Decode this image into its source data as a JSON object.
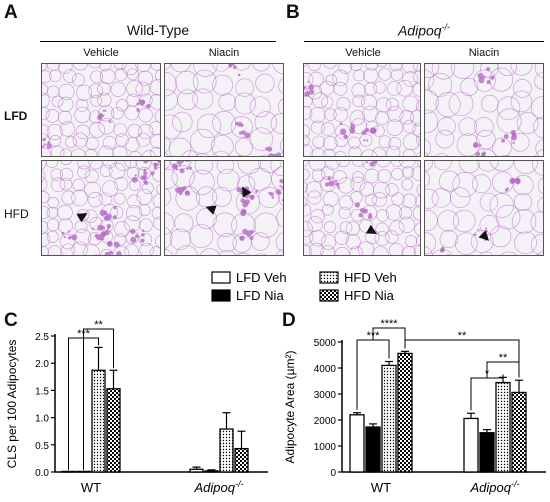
{
  "panels": {
    "A": {
      "letter": "A",
      "title": "Wild-Type"
    },
    "B": {
      "letter": "B",
      "title": "Adipoq",
      "title_sup": "-/-"
    },
    "C": {
      "letter": "C"
    },
    "D": {
      "letter": "D"
    }
  },
  "micrograph_columns": [
    "Vehicle",
    "Niacin",
    "Vehicle",
    "Niacin"
  ],
  "micrograph_rows": [
    "LFD",
    "HFD"
  ],
  "legend": [
    {
      "label": "LFD Veh",
      "pattern": "open"
    },
    {
      "label": "HFD Veh",
      "pattern": "dotted"
    },
    {
      "label": "LFD Nia",
      "pattern": "solid"
    },
    {
      "label": "HFD Nia",
      "pattern": "checkered"
    }
  ],
  "colors": {
    "black": "#000000",
    "tissue": "#b46ac4",
    "micro_bg": "#f4f2f6"
  },
  "chart_data": [
    {
      "type": "bar",
      "panel": "C",
      "groups": [
        "WT",
        "Adipoq-/-"
      ],
      "group_labels": {
        "WT": "WT",
        "Adipoq-/-": {
          "base": "Adipoq",
          "sup": "-/-"
        }
      },
      "series": [
        {
          "name": "LFD Veh",
          "values": [
            0.0,
            0.05
          ],
          "errors": [
            0.0,
            0.04
          ]
        },
        {
          "name": "LFD Nia",
          "values": [
            0.0,
            0.02
          ],
          "errors": [
            0.0,
            0.02
          ]
        },
        {
          "name": "HFD Veh",
          "values": [
            1.87,
            0.79
          ],
          "errors": [
            0.42,
            0.3
          ]
        },
        {
          "name": "HFD Nia",
          "values": [
            1.53,
            0.43
          ],
          "errors": [
            0.34,
            0.32
          ]
        }
      ],
      "ylabel": "CLS per 100 Adipocytes",
      "ylim": [
        0,
        2.5
      ],
      "yticks": [
        "0.0",
        "0.5",
        "1.0",
        "1.5",
        "2.0",
        "2.5"
      ],
      "annotations": [
        "***",
        "**"
      ]
    },
    {
      "type": "bar",
      "panel": "D",
      "groups": [
        "WT",
        "Adipoq-/-"
      ],
      "group_labels": {
        "WT": "WT",
        "Adipoq-/-": {
          "base": "Adipoq",
          "sup": "-/-"
        }
      },
      "series": [
        {
          "name": "LFD Veh",
          "values": [
            2200,
            2060
          ],
          "errors": [
            80,
            200
          ]
        },
        {
          "name": "LFD Nia",
          "values": [
            1730,
            1510
          ],
          "errors": [
            120,
            120
          ]
        },
        {
          "name": "HFD Veh",
          "values": [
            4100,
            3440
          ],
          "errors": [
            150,
            200
          ]
        },
        {
          "name": "HFD Nia",
          "values": [
            4560,
            3060
          ],
          "errors": [
            80,
            470
          ]
        }
      ],
      "ylabel": "Adipocyte Area (µm²)",
      "ylim": [
        0,
        5000
      ],
      "yticks": [
        "0",
        "1000",
        "2000",
        "3000",
        "4000",
        "5000"
      ],
      "annotations": [
        "***",
        "****",
        "**",
        "*",
        "**"
      ]
    }
  ]
}
